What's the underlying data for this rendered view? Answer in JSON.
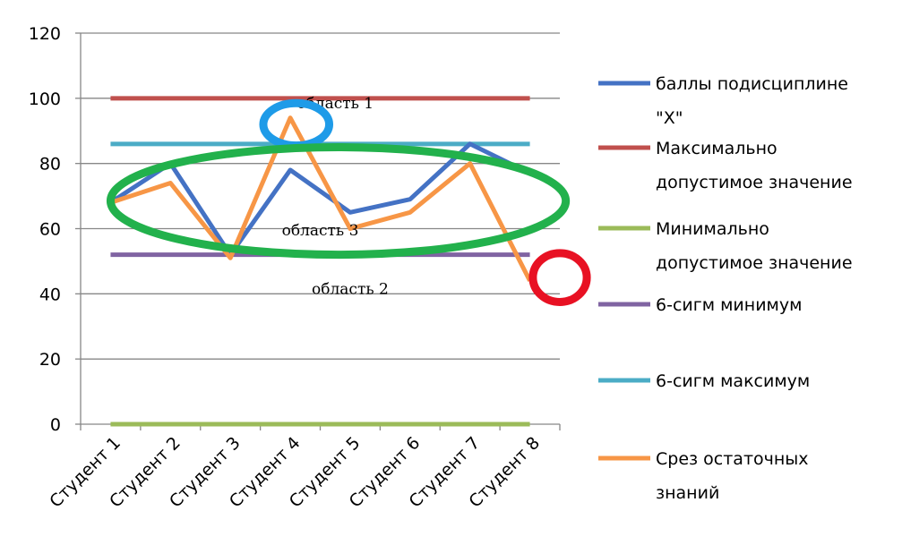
{
  "chart_data": {
    "type": "line",
    "categories": [
      "Студент 1",
      "Студент 2",
      "Студент 3",
      "Студент 4",
      "Студент 5",
      "Студент 6",
      "Студент 7",
      "Студент 8"
    ],
    "ylim": [
      0,
      120
    ],
    "yticks": [
      0,
      20,
      40,
      60,
      80,
      100,
      120
    ],
    "grid": true,
    "legend_position": "right",
    "series": [
      {
        "name": "баллы подисциплине \"Х\"",
        "legend_lines": [
          "баллы подисциплине",
          "\"Х\""
        ],
        "color": "#4472C4",
        "values": [
          68,
          80,
          52,
          78,
          65,
          69,
          86,
          77
        ]
      },
      {
        "name": "Максимально допустимое значение",
        "legend_lines": [
          "Максимально",
          "допустимое значение"
        ],
        "color": "#C0504D",
        "values": [
          100,
          100,
          100,
          100,
          100,
          100,
          100,
          100
        ]
      },
      {
        "name": "Минимально допустимое значение",
        "legend_lines": [
          "Минимально",
          "допустимое значение"
        ],
        "color": "#9BBB59",
        "values": [
          0,
          0,
          0,
          0,
          0,
          0,
          0,
          0
        ]
      },
      {
        "name": "6-сигм минимум",
        "legend_lines": [
          "6-сигм минимум"
        ],
        "color": "#8064A2",
        "values": [
          52,
          52,
          52,
          52,
          52,
          52,
          52,
          52
        ]
      },
      {
        "name": "6-сигм максимум",
        "legend_lines": [
          "6-сигм максимум"
        ],
        "color": "#4BACC6",
        "values": [
          86,
          86,
          86,
          86,
          86,
          86,
          86,
          86
        ]
      },
      {
        "name": "Срез остаточных знаний",
        "legend_lines": [
          "Срез остаточных",
          "знаний"
        ],
        "color": "#F79646",
        "values": [
          68,
          74,
          51,
          94,
          60,
          65,
          80,
          44
        ]
      }
    ],
    "annotations": [
      {
        "text": "область 1",
        "x_cat": 4.75,
        "y": 97
      },
      {
        "text": "область 3",
        "x_cat": 4.5,
        "y": 58
      },
      {
        "text": "область 2",
        "x_cat": 5.0,
        "y": 40
      }
    ],
    "highlights": [
      {
        "shape": "ellipse",
        "color": "#1E9BE8",
        "cx_cat": 4.1,
        "cy": 92,
        "rx_cat": 0.55,
        "ry": 6.5
      },
      {
        "shape": "ellipse",
        "color": "#22B14C",
        "cx_cat": 4.8,
        "cy": 68.5,
        "rx_cat": 3.8,
        "ry": 16.5
      },
      {
        "shape": "ellipse",
        "color": "#E81123",
        "cx_cat": 8.5,
        "cy": 45,
        "rx_cat": 0.45,
        "ry": 7.5
      }
    ]
  }
}
